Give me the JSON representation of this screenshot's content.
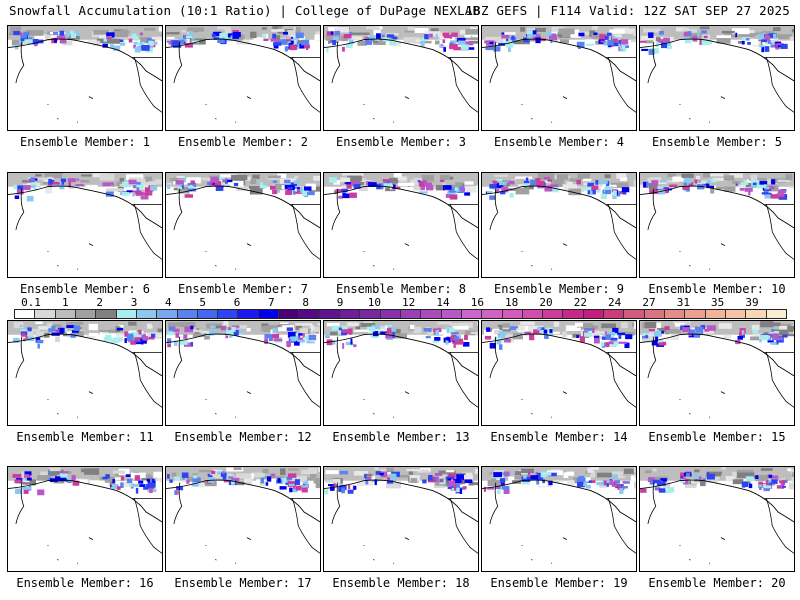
{
  "header": {
    "title_left": "Snowfall Accumulation (10:1 Ratio) | College of DuPage NEXLAB",
    "title_right": "18Z GEFS | F114 Valid: 12Z SAT SEP 27 2025"
  },
  "panels": [
    {
      "label": "Ensemble Member: 1"
    },
    {
      "label": "Ensemble Member: 2"
    },
    {
      "label": "Ensemble Member: 3"
    },
    {
      "label": "Ensemble Member: 4"
    },
    {
      "label": "Ensemble Member: 5"
    },
    {
      "label": "Ensemble Member: 6"
    },
    {
      "label": "Ensemble Member: 7"
    },
    {
      "label": "Ensemble Member: 8"
    },
    {
      "label": "Ensemble Member: 9"
    },
    {
      "label": "Ensemble Member: 10"
    },
    {
      "label": "Ensemble Member: 11"
    },
    {
      "label": "Ensemble Member: 12"
    },
    {
      "label": "Ensemble Member: 13"
    },
    {
      "label": "Ensemble Member: 14"
    },
    {
      "label": "Ensemble Member: 15"
    },
    {
      "label": "Ensemble Member: 16"
    },
    {
      "label": "Ensemble Member: 17"
    },
    {
      "label": "Ensemble Member: 18"
    },
    {
      "label": "Ensemble Member: 19"
    },
    {
      "label": "Ensemble Member: 20"
    }
  ],
  "colorbar": {
    "labels": [
      "0.1",
      "1",
      "2",
      "3",
      "4",
      "5",
      "6",
      "7",
      "8",
      "9",
      "10",
      "12",
      "14",
      "16",
      "18",
      "20",
      "22",
      "24",
      "27",
      "31",
      "35",
      "39"
    ],
    "colors": [
      "#ffffff",
      "#d9d9d9",
      "#bdbdbd",
      "#a0a0a0",
      "#808080",
      "#a8eeee",
      "#8cc8f0",
      "#78a8f0",
      "#5a82ee",
      "#4466f0",
      "#2c44f2",
      "#1a1af0",
      "#0000ee",
      "#4a0078",
      "#560886",
      "#62148e",
      "#6e1e98",
      "#7a28a0",
      "#8832aa",
      "#9840b4",
      "#a84cbc",
      "#b858c6",
      "#cc66cc",
      "#d062c4",
      "#d45abc",
      "#d04eae",
      "#cc3c9c",
      "#c8288a",
      "#c41e7e",
      "#cc3c7c",
      "#d25c7e",
      "#da7482",
      "#e48c88",
      "#eca090",
      "#f2b496",
      "#f6c4a4",
      "#f8d6b8",
      "#fcecd2"
    ]
  }
}
